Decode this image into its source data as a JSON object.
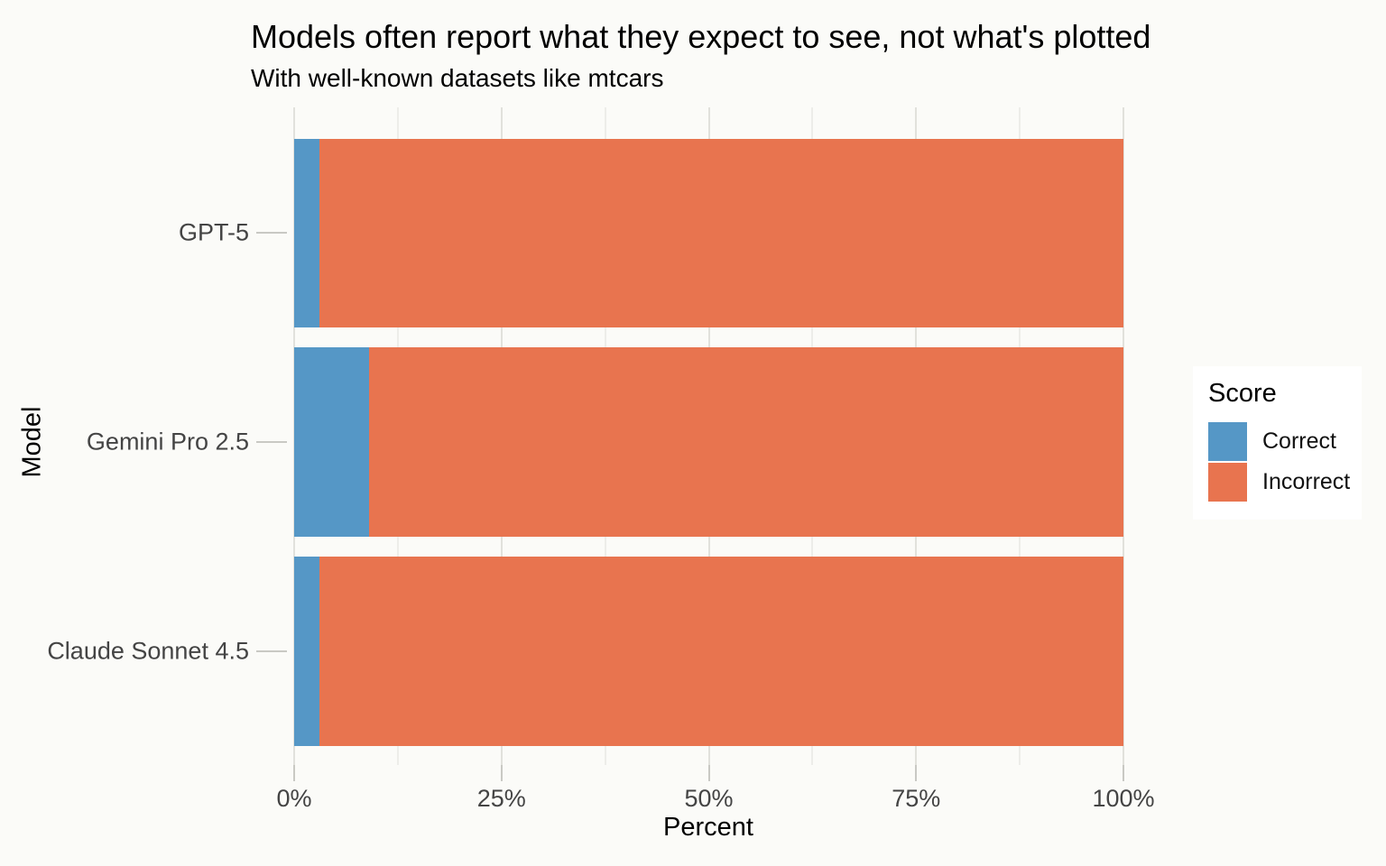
{
  "title": "Models often report what they expect to see, not what's plotted",
  "subtitle": "With well-known datasets like mtcars",
  "chart_data": {
    "type": "bar",
    "orientation": "horizontal",
    "stacked": true,
    "categories": [
      "GPT-5",
      "Gemini Pro 2.5",
      "Claude Sonnet 4.5"
    ],
    "series": [
      {
        "name": "Correct",
        "color": "#5597C6",
        "values": [
          3,
          9,
          3
        ]
      },
      {
        "name": "Incorrect",
        "color": "#E8744F",
        "values": [
          97,
          91,
          97
        ]
      }
    ],
    "xlabel": "Percent",
    "ylabel": "Model",
    "legend_title": "Score",
    "legend_position": "right",
    "xlim": [
      0,
      100
    ],
    "x_ticks": [
      "0%",
      "25%",
      "50%",
      "75%",
      "100%"
    ],
    "x_tick_values": [
      0,
      25,
      50,
      75,
      100
    ],
    "x_minor_tick_values": [
      12.5,
      37.5,
      62.5,
      87.5
    ],
    "grid": true,
    "background_color": "#FBFBF8",
    "major_grid_color": "#E1E1DC",
    "minor_grid_color": "#EDEDE9"
  }
}
